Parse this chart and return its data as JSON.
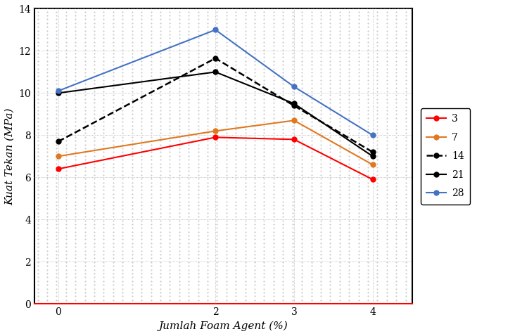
{
  "x": [
    0,
    2,
    3,
    4
  ],
  "series_order": [
    "3",
    "7",
    "14",
    "21",
    "28"
  ],
  "series": {
    "3": {
      "values": [
        6.4,
        7.9,
        7.8,
        5.9
      ],
      "color": "#FF0000",
      "linestyle": "-",
      "linewidth": 1.5,
      "marker": "o",
      "markersize": 5
    },
    "7": {
      "values": [
        7.0,
        8.2,
        8.7,
        6.6
      ],
      "color": "#E07820",
      "linestyle": "-",
      "linewidth": 1.5,
      "marker": "o",
      "markersize": 5
    },
    "14": {
      "values": [
        7.7,
        11.65,
        9.4,
        7.2
      ],
      "color": "#000000",
      "linestyle": "--",
      "linewidth": 1.8,
      "marker": "o",
      "markersize": 5
    },
    "21": {
      "values": [
        10.0,
        11.0,
        9.5,
        7.0
      ],
      "color": "#000000",
      "linestyle": "-",
      "linewidth": 1.5,
      "marker": "o",
      "markersize": 5
    },
    "28": {
      "values": [
        10.1,
        13.0,
        10.3,
        8.0
      ],
      "color": "#4472C4",
      "linestyle": "-",
      "linewidth": 1.5,
      "marker": "o",
      "markersize": 5
    }
  },
  "xlabel": "Jumlah Foam Agent (%)",
  "ylabel": "Kuat Tekan (MPa)",
  "ylim": [
    0,
    14
  ],
  "xlim": [
    -0.3,
    4.5
  ],
  "xticks": [
    0,
    2,
    3,
    4
  ],
  "yticks": [
    0,
    2,
    4,
    6,
    8,
    10,
    12,
    14
  ],
  "grid_color": "#aaaaaa",
  "grid_linestyle": ":",
  "grid_linewidth": 0.6,
  "plot_bg_color": "#d8d8d8",
  "fig_bg_color": "#ffffff",
  "bottom_spine_color": "#FF0000",
  "other_spine_color": "#000000",
  "spine_linewidth": 1.5,
  "legend_fontsize": 10,
  "axis_label_fontsize": 11,
  "tick_fontsize": 10
}
